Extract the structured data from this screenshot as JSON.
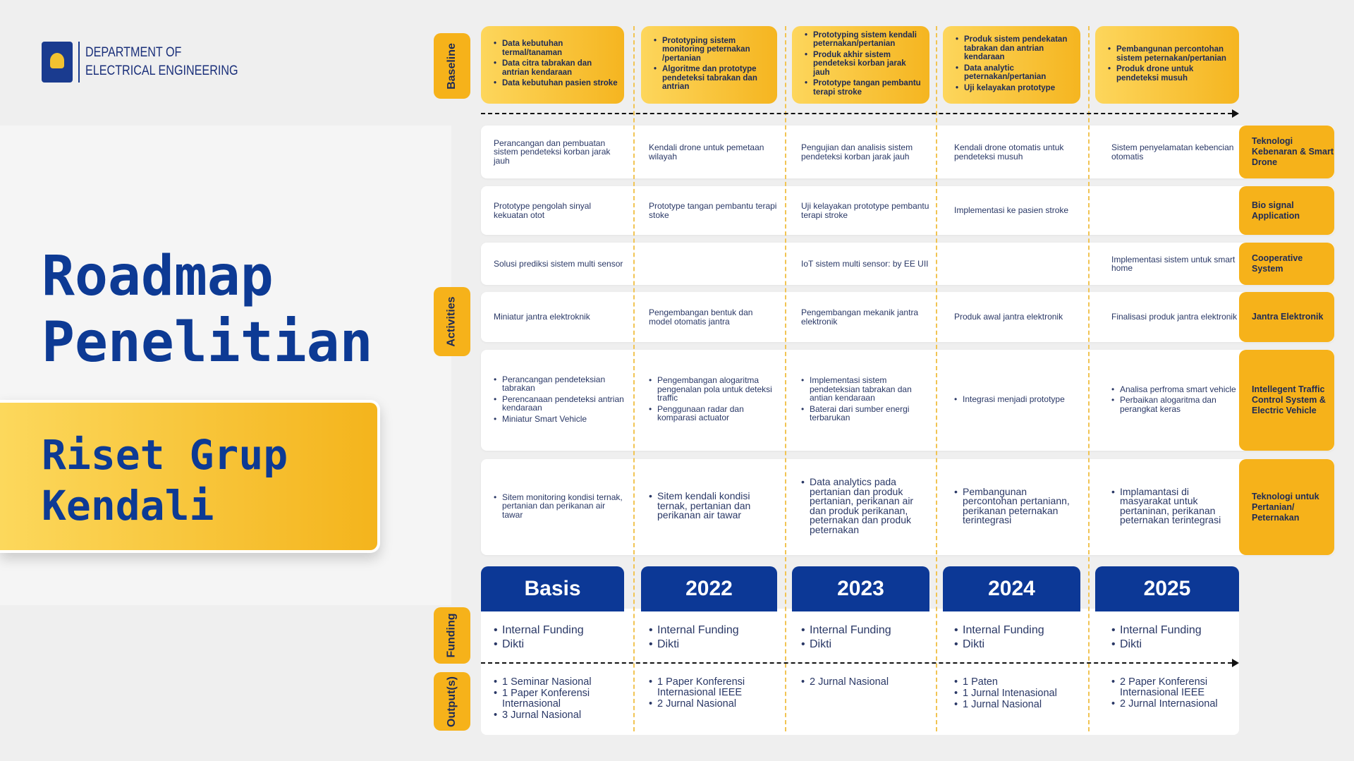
{
  "header": {
    "dept_line1": "DEPARTMENT OF",
    "dept_line2": "ELECTRICAL ENGINEERING"
  },
  "title": {
    "line1": "Roadmap",
    "line2": "Penelitian"
  },
  "group": {
    "line1": "Riset Grup",
    "line2": "Kendali"
  },
  "side_labels": {
    "baseline": "Baseline",
    "activities": "Activities",
    "funding": "Funding",
    "outputs": "Output(s)"
  },
  "columns": [
    "Basis",
    "2022",
    "2023",
    "2024",
    "2025"
  ],
  "baseline": [
    [
      "Data kebutuhan termal/tanaman",
      "Data citra tabrakan dan antrian kendaraan",
      "Data kebutuhan pasien stroke"
    ],
    [
      "Prototyping sistem monitoring peternakan /pertanian",
      "Algoritme dan prototype pendeteksi tabrakan dan antrian"
    ],
    [
      "Prototyping sistem kendali peternakan/pertanian",
      "Produk akhir sistem pendeteksi korban jarak jauh",
      "Prototype tangan pembantu terapi stroke"
    ],
    [
      "Produk sistem pendekatan tabrakan dan antrian kendaraan",
      "Data analytic peternakan/pertanian",
      "Uji kelayakan prototype"
    ],
    [
      "Pembangunan percontohan sistem peternakan/pertanian",
      "Produk drone untuk pendeteksi musuh"
    ]
  ],
  "activities": [
    {
      "label": "Teknologi Kebenaran & Smart Drone",
      "cells": [
        "Perancangan dan pembuatan sistem pendeteksi korban jarak jauh",
        "Kendali drone untuk pemetaan wilayah",
        "Pengujian dan analisis sistem pendeteksi korban jarak jauh",
        "Kendali drone otomatis untuk pendeteksi musuh",
        "Sistem penyelamatan kebencian otomatis"
      ]
    },
    {
      "label": "Bio signal Application",
      "cells": [
        "Prototype pengolah sinyal kekuatan otot",
        "Prototype tangan pembantu terapi stoke",
        "Uji kelayakan prototype pembantu terapi stroke",
        "Implementasi ke pasien stroke",
        ""
      ]
    },
    {
      "label": "Cooperative System",
      "cells": [
        "Solusi prediksi sistem multi sensor",
        "",
        "IoT sistem multi sensor: by EE UII",
        "",
        "Implementasi sistem untuk smart home"
      ]
    },
    {
      "label": "Jantra Elektronik",
      "cells": [
        "Miniatur jantra elektroknik",
        "Pengembangan bentuk dan model otomatis jantra",
        "Pengembangan mekanik jantra elektronik",
        "Produk awal jantra elektronik",
        "Finalisasi produk jantra elektronik"
      ]
    },
    {
      "label": "Intellegent Traffic Control System & Electric Vehicle",
      "lists": [
        [
          "Perancangan pendeteksian tabrakan",
          "Perencanaan pendeteksi antrian kendaraan",
          "Miniatur Smart Vehicle"
        ],
        [
          "Pengembangan alogaritma pengenalan pola untuk deteksi traffic",
          "Penggunaan radar dan komparasi actuator"
        ],
        [
          "Implementasi sistem pendeteksian tabrakan dan antian kendaraan",
          "Baterai dari sumber energi terbarukan"
        ],
        [
          "Integrasi menjadi prototype"
        ],
        [
          "Analisa perfroma smart vehicle",
          "Perbaikan alogaritma dan perangkat keras"
        ]
      ]
    },
    {
      "label": "Teknologi untuk Pertanian/ Peternakan",
      "lists": [
        [
          "Sitem monitoring kondisi ternak, pertanian dan perikanan air tawar"
        ],
        [
          "Sitem kendali kondisi ternak, pertanian dan perikanan air tawar"
        ],
        [
          "Data analytics pada pertanian dan produk pertanian, perikanan air dan produk perikanan, peternakan dan produk peternakan"
        ],
        [
          "Pembangunan percontohan pertaniann, perikanan peternakan terintegrasi"
        ],
        [
          "Implamantasi di masyarakat untuk pertaninan, perikanan peternakan terintegrasi"
        ]
      ]
    }
  ],
  "funding": [
    [
      "Internal Funding",
      "Dikti"
    ],
    [
      "Internal Funding",
      "Dikti"
    ],
    [
      "Internal Funding",
      "Dikti"
    ],
    [
      "Internal Funding",
      "Dikti"
    ],
    [
      "Internal Funding",
      "Dikti"
    ]
  ],
  "outputs": [
    [
      "1 Seminar Nasional",
      "1 Paper Konferensi Internasional",
      "3 Jurnal Nasional"
    ],
    [
      "1 Paper Konferensi Internasional IEEE",
      "2 Jurnal Nasional"
    ],
    [
      "2 Jurnal Nasional"
    ],
    [
      "1 Paten",
      "1 Jurnal Intenasional",
      "1 Jurnal Nasional"
    ],
    [
      "2 Paper Konferensi Internasional IEEE",
      "2 Jurnal Internasional"
    ]
  ],
  "colors": {
    "accent_yellow": "#f6b21a",
    "brand_blue": "#0c3896",
    "text": "#1e2a55"
  }
}
